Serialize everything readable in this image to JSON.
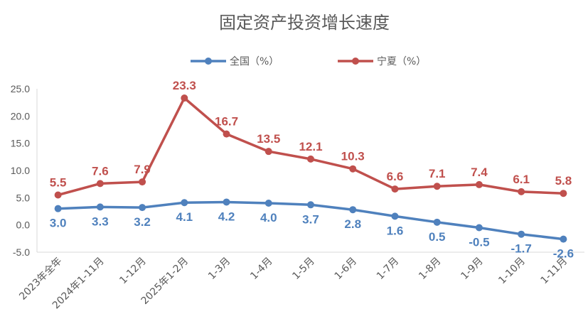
{
  "chart_data": {
    "type": "line",
    "title": "固定资产投资增长速度",
    "categories": [
      "2023年全年",
      "2024年1-11月",
      "1-12月",
      "2025年1-2月",
      "1-3月",
      "1-4月",
      "1-5月",
      "1-6月",
      "1-7月",
      "1-8月",
      "1-9月",
      "1-10月",
      "1-11月"
    ],
    "series": [
      {
        "name": "全国（%）",
        "color": "#4f81bd",
        "values": [
          3.0,
          3.3,
          3.2,
          4.1,
          4.2,
          4.0,
          3.7,
          2.8,
          1.6,
          0.5,
          -0.5,
          -1.7,
          -2.6
        ]
      },
      {
        "name": "宁夏（%）",
        "color": "#c0504d",
        "values": [
          5.5,
          7.6,
          7.9,
          23.3,
          16.7,
          13.5,
          12.1,
          10.3,
          6.6,
          7.1,
          7.4,
          6.1,
          5.8
        ]
      }
    ],
    "yticks": [
      "25.0",
      "20.0",
      "15.0",
      "10.0",
      "5.0",
      "0.0",
      "-5.0"
    ],
    "ylim": [
      -5,
      25
    ],
    "legend": "top",
    "grid": false
  }
}
